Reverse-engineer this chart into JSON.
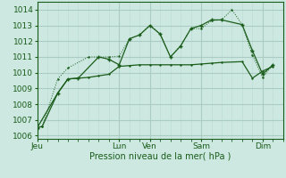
{
  "background_color": "#cce8e0",
  "grid_color_major": "#aaccc4",
  "grid_color_minor": "#bcddd6",
  "line_color": "#1a5c1a",
  "xlabel": "Pression niveau de la mer( hPa )",
  "ylim": [
    1005.8,
    1014.5
  ],
  "yticks": [
    1006,
    1007,
    1008,
    1009,
    1010,
    1011,
    1012,
    1013,
    1014
  ],
  "x_tick_labels": [
    "Jeu",
    "Lun",
    "Ven",
    "Sam",
    "Dim"
  ],
  "x_tick_positions": [
    0,
    8,
    11,
    16,
    22
  ],
  "x_max": 24,
  "line1_x": [
    0,
    0.5,
    2,
    3,
    5,
    6,
    7,
    8,
    9,
    10,
    11,
    12,
    13,
    14,
    15,
    16,
    17,
    18,
    20,
    21,
    22,
    23
  ],
  "line1_y": [
    1006.5,
    1006.6,
    1008.7,
    1009.6,
    1009.7,
    1009.8,
    1009.9,
    1010.4,
    1010.45,
    1010.5,
    1010.5,
    1010.5,
    1010.5,
    1010.5,
    1010.5,
    1010.55,
    1010.6,
    1010.65,
    1010.7,
    1009.65,
    1010.1,
    1010.4
  ],
  "line2_x": [
    0,
    0.5,
    2,
    3,
    5,
    7,
    8,
    9,
    10,
    11,
    12,
    13,
    14,
    15,
    16,
    17,
    18,
    19,
    20,
    21,
    22,
    23
  ],
  "line2_y": [
    1006.5,
    1006.6,
    1009.6,
    1010.3,
    1011.0,
    1011.0,
    1011.05,
    1012.15,
    1012.4,
    1013.0,
    1012.45,
    1011.0,
    1011.7,
    1012.8,
    1012.8,
    1013.3,
    1013.35,
    1014.0,
    1013.05,
    1011.1,
    1009.7,
    1010.5
  ],
  "line3_x": [
    0,
    2,
    3,
    4,
    6,
    7,
    8,
    9,
    10,
    11,
    12,
    13,
    14,
    15,
    16,
    17,
    18,
    20,
    21,
    22,
    23
  ],
  "line3_y": [
    1006.5,
    1008.7,
    1009.6,
    1009.65,
    1011.0,
    1010.85,
    1010.5,
    1012.15,
    1012.4,
    1013.0,
    1012.45,
    1011.0,
    1011.7,
    1012.8,
    1013.0,
    1013.35,
    1013.35,
    1013.05,
    1011.4,
    1009.9,
    1010.5
  ]
}
